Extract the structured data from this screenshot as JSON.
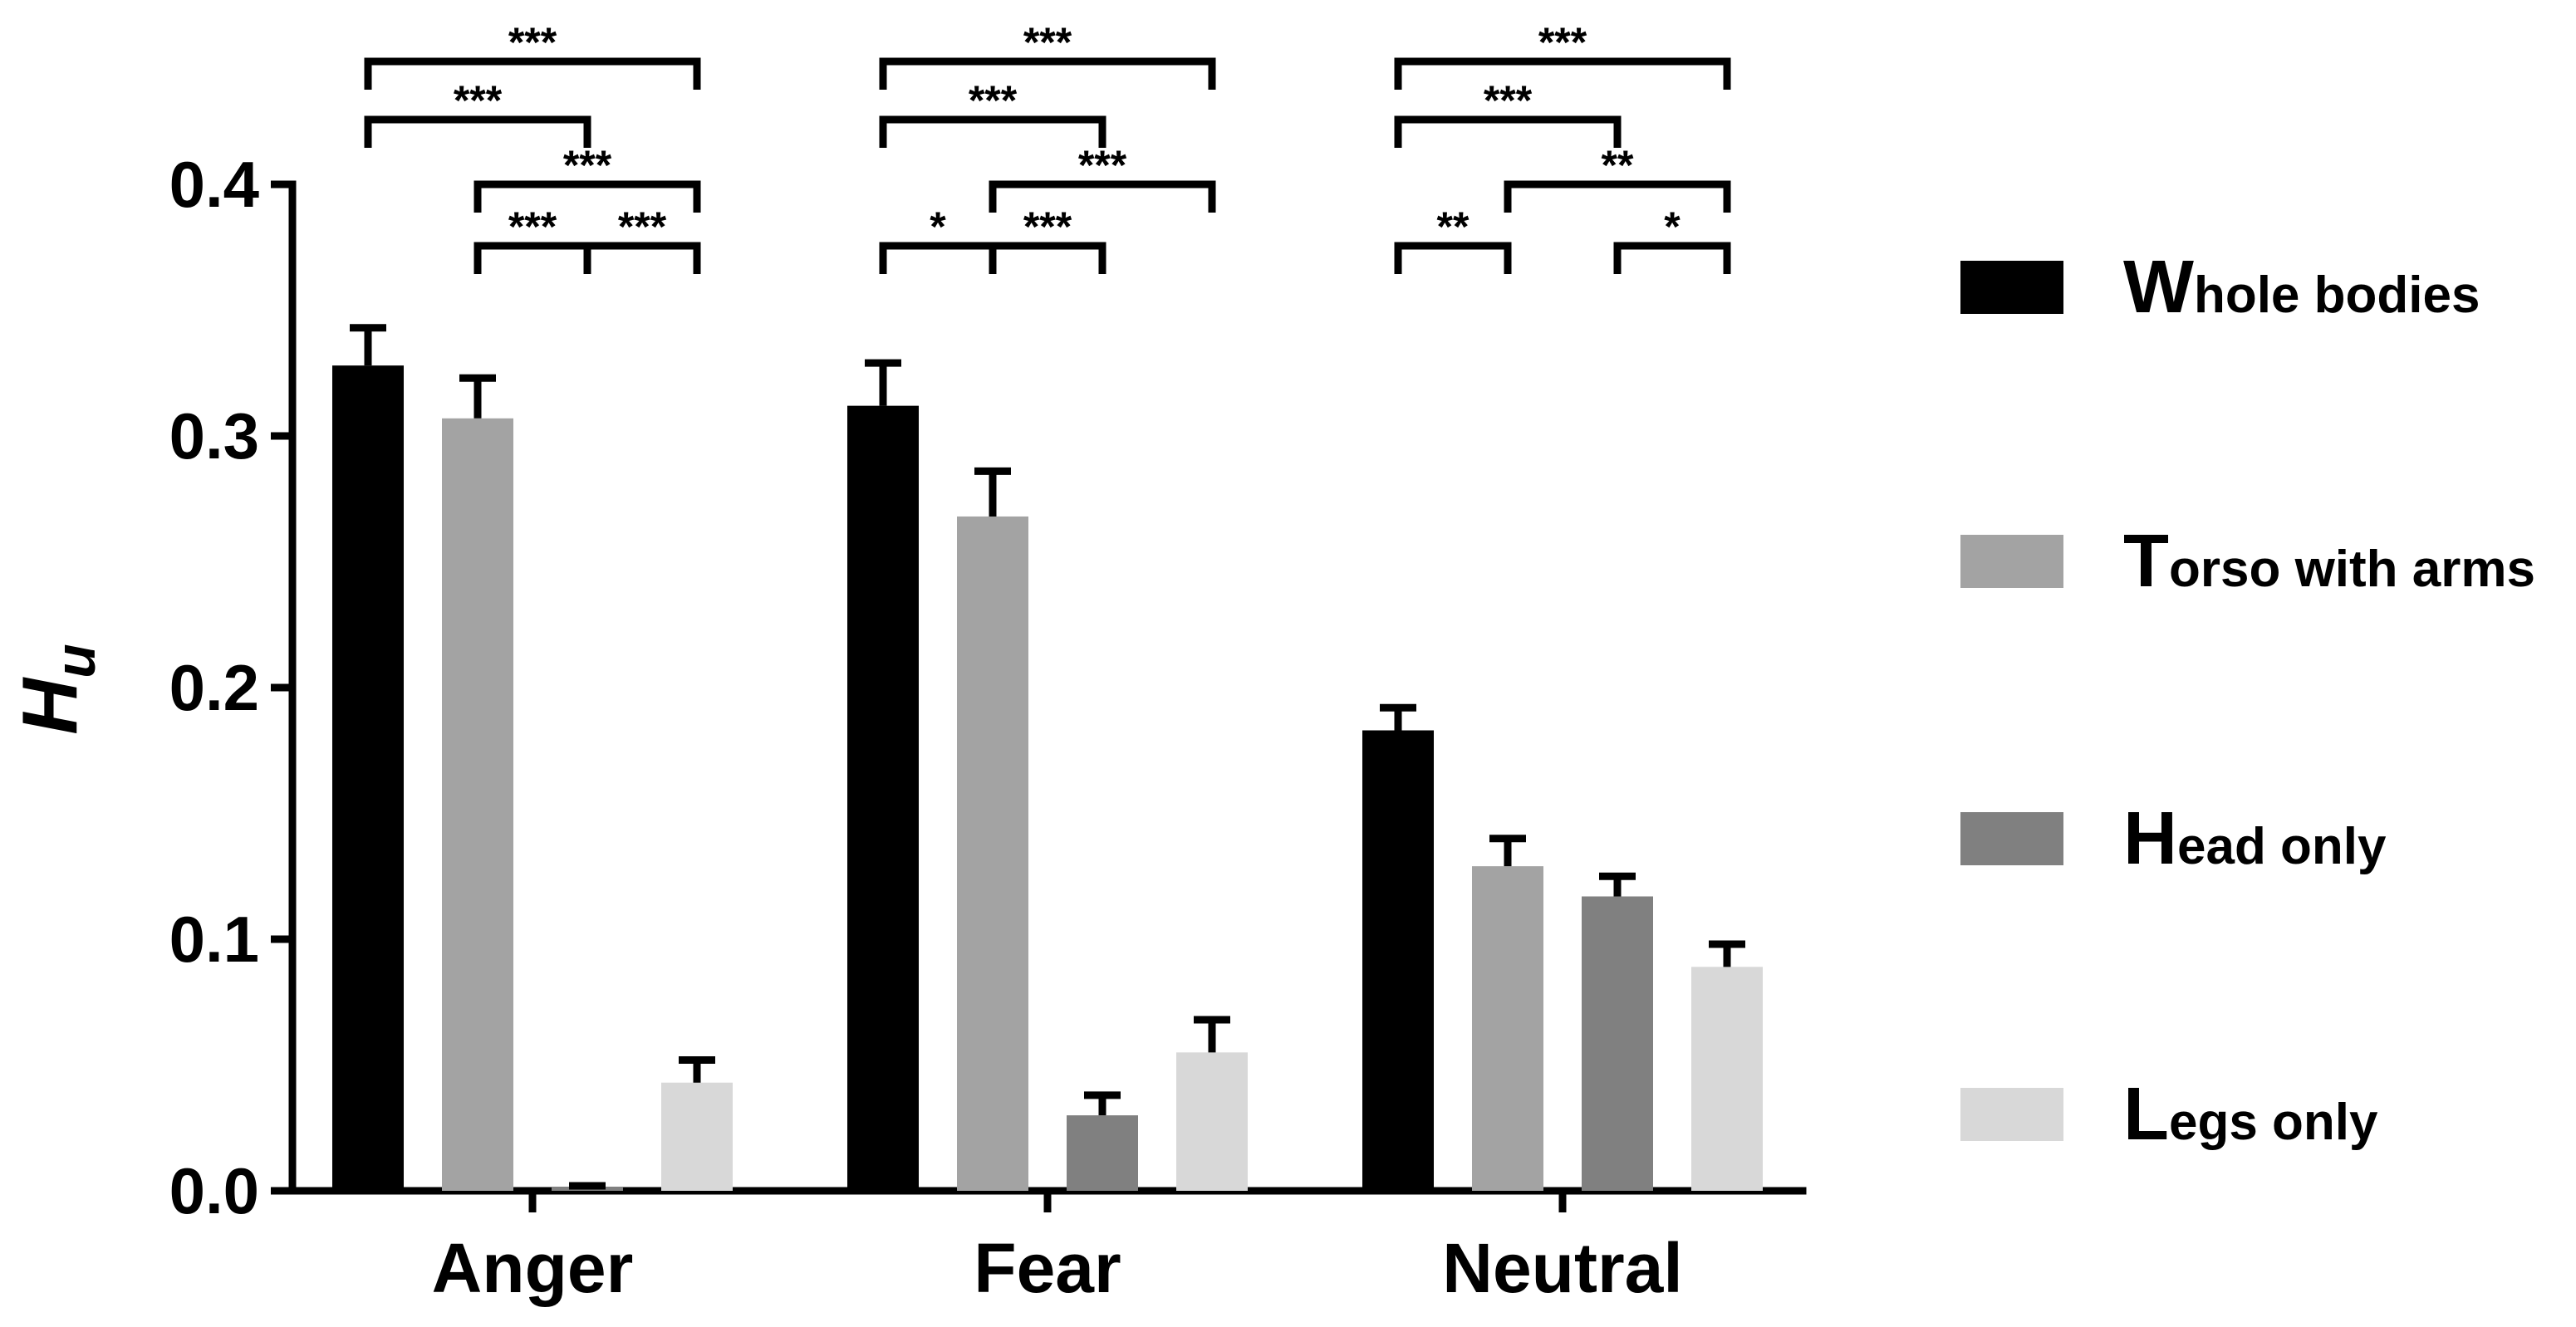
{
  "chart_data": {
    "type": "bar",
    "title": "",
    "xlabel": "",
    "ylabel": "H",
    "ylabel_subscript": "u",
    "ylim": [
      0,
      0.4
    ],
    "yticks": [
      "0.0",
      "0.1",
      "0.2",
      "0.3",
      "0.4"
    ],
    "categories": [
      "Anger",
      "Fear",
      "Neutral"
    ],
    "series": [
      {
        "name": "Whole bodies",
        "legend_initial": "W",
        "legend_rest": "hole bodies",
        "color": "#000000",
        "values": [
          0.328,
          0.312,
          0.183
        ],
        "errors": [
          0.015,
          0.017,
          0.009
        ]
      },
      {
        "name": "Torso with arms",
        "legend_initial": "T",
        "legend_rest": "orso with arms",
        "color": "#a3a3a3",
        "values": [
          0.307,
          0.268,
          0.129
        ],
        "errors": [
          0.016,
          0.018,
          0.011
        ]
      },
      {
        "name": "Head only",
        "legend_initial": "H",
        "legend_rest": "ead only",
        "color": "#808080",
        "values": [
          0.001,
          0.03,
          0.117
        ],
        "errors": [
          0.001,
          0.008,
          0.008
        ]
      },
      {
        "name": "Legs only",
        "legend_initial": "L",
        "legend_rest": "egs only",
        "color": "#d8d8d8",
        "values": [
          0.043,
          0.055,
          0.089
        ],
        "errors": [
          0.009,
          0.013,
          0.009
        ]
      }
    ],
    "significance": [
      {
        "category": 0,
        "from": 0,
        "to": 3,
        "level": 4,
        "label": "***"
      },
      {
        "category": 0,
        "from": 0,
        "to": 2,
        "level": 3,
        "label": "***"
      },
      {
        "category": 0,
        "from": 1,
        "to": 3,
        "level": 2,
        "label": "***"
      },
      {
        "category": 0,
        "from": 1,
        "to": 2,
        "level": 1,
        "label": "***"
      },
      {
        "category": 0,
        "from": 2,
        "to": 3,
        "level": 1,
        "label": "***"
      },
      {
        "category": 1,
        "from": 0,
        "to": 3,
        "level": 4,
        "label": "***"
      },
      {
        "category": 1,
        "from": 0,
        "to": 2,
        "level": 3,
        "label": "***"
      },
      {
        "category": 1,
        "from": 1,
        "to": 3,
        "level": 2,
        "label": "***"
      },
      {
        "category": 1,
        "from": 0,
        "to": 1,
        "level": 1,
        "label": "*"
      },
      {
        "category": 1,
        "from": 1,
        "to": 2,
        "level": 1,
        "label": "***"
      },
      {
        "category": 2,
        "from": 0,
        "to": 3,
        "level": 4,
        "label": "***"
      },
      {
        "category": 2,
        "from": 0,
        "to": 2,
        "level": 3,
        "label": "***"
      },
      {
        "category": 2,
        "from": 1,
        "to": 3,
        "level": 2,
        "label": "**"
      },
      {
        "category": 2,
        "from": 0,
        "to": 1,
        "level": 1,
        "label": "**"
      },
      {
        "category": 2,
        "from": 2,
        "to": 3,
        "level": 1,
        "label": "*"
      }
    ],
    "grid": false,
    "legend_position": "right"
  }
}
